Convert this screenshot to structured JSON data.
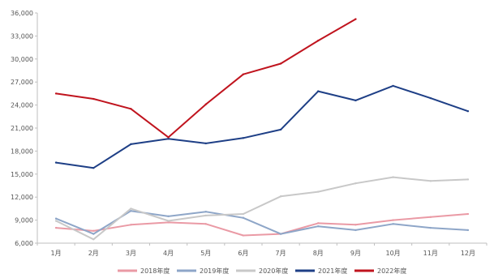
{
  "chart_data": {
    "type": "line",
    "title": "",
    "xlabel": "",
    "ylabel": "",
    "categories": [
      "1月",
      "2月",
      "3月",
      "4月",
      "5月",
      "6月",
      "7月",
      "8月",
      "9月",
      "10月",
      "11月",
      "12月"
    ],
    "ylim": [
      6000,
      36000
    ],
    "yticks": [
      6000,
      9000,
      12000,
      15000,
      18000,
      21000,
      24000,
      27000,
      30000,
      33000,
      36000
    ],
    "ytick_labels": [
      "6,000",
      "9,000",
      "12,000",
      "15,000",
      "18,000",
      "21,000",
      "24,000",
      "27,000",
      "30,000",
      "33,000",
      "36,000"
    ],
    "grid": false,
    "legend_position": "bottom",
    "series": [
      {
        "name": "2018年度",
        "color": "#ea9aa5",
        "values": [
          8000,
          7600,
          8400,
          8700,
          8500,
          7000,
          7200,
          8600,
          8400,
          9000,
          9400,
          9800
        ]
      },
      {
        "name": "2019年度",
        "color": "#8ea6c8",
        "values": [
          9200,
          7200,
          10200,
          9500,
          10100,
          9300,
          7200,
          8200,
          7700,
          8500,
          8000,
          7700
        ]
      },
      {
        "name": "2020年度",
        "color": "#c8c8c8",
        "values": [
          8900,
          6500,
          10500,
          8900,
          9600,
          9800,
          12100,
          12700,
          13800,
          14600,
          14100,
          14300
        ]
      },
      {
        "name": "2021年度",
        "color": "#1e3f86",
        "values": [
          16500,
          15800,
          18900,
          19600,
          19000,
          19700,
          20800,
          25800,
          24600,
          26500,
          24900,
          23200
        ]
      },
      {
        "name": "2022年度",
        "color": "#c0141e",
        "values": [
          25500,
          24800,
          23500,
          19800,
          24100,
          28000,
          29400,
          32400,
          35200,
          null,
          null,
          null
        ]
      }
    ]
  }
}
